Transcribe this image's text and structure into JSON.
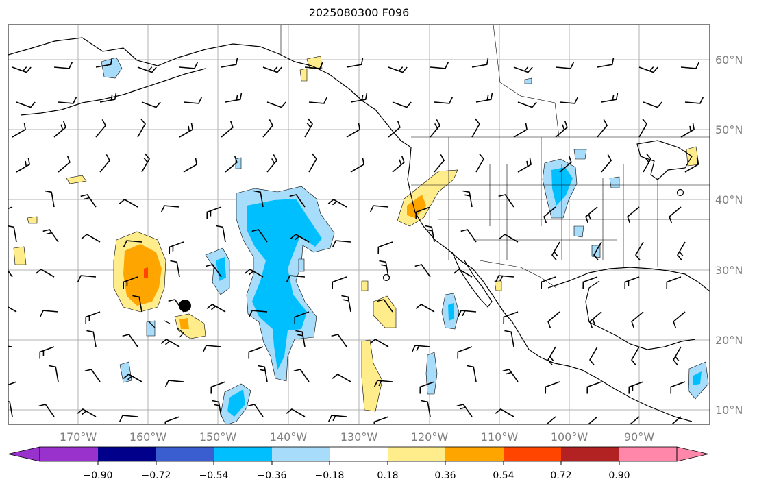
{
  "title": "2025080300 F096",
  "lon_labels": [
    "170°W",
    "160°W",
    "150°W",
    "140°W",
    "130°W",
    "120°W",
    "110°W",
    "100°W",
    "90°W"
  ],
  "lat_labels": [
    "60°N",
    "50°N",
    "40°N",
    "30°N",
    "20°N",
    "10°N"
  ],
  "colorbar": {
    "tick_labels": [
      "−0.90",
      "−0.72",
      "−0.54",
      "−0.36",
      "−0.18",
      "0.18",
      "0.36",
      "0.54",
      "0.72",
      "0.90"
    ],
    "colors": [
      "#9932cc",
      "#00008b",
      "#3a5ecf",
      "#00bfff",
      "#a7dcfb",
      "#ffffff",
      "#ffec8b",
      "#ffa500",
      "#ff4500",
      "#b22222",
      "#ff88aa"
    ]
  },
  "colors": {
    "light_blue": "#a7dcfb",
    "blue": "#00bfff",
    "light_yellow": "#ffec8b",
    "orange": "#ffa500",
    "red_orange": "#ff4500",
    "grid": "#b0b0b0"
  },
  "markers": [
    {
      "name": "storm-center-marker",
      "type": "filled-circle"
    },
    {
      "name": "open-circle-marker",
      "type": "open-circle"
    }
  ]
}
